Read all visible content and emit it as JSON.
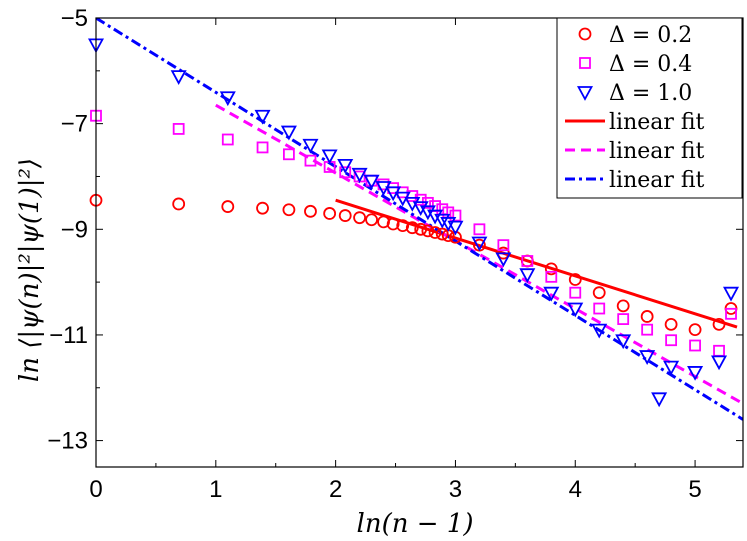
{
  "chart_data": {
    "type": "scatter",
    "xlabel": "ln(n − 1)",
    "ylabel": "ln ⟨|ψ(n)|²|ψ(1)|²⟩",
    "xlim": [
      0,
      5.4
    ],
    "ylim": [
      -13.5,
      -5
    ],
    "xticks": [
      0,
      1,
      2,
      3,
      4,
      5
    ],
    "yticks": [
      -5,
      -7,
      -9,
      -11,
      -13
    ],
    "grid": false,
    "legend_position": "top-right",
    "series": [
      {
        "name": "Δ = 0.2",
        "marker": "circle",
        "color": "#ff0000",
        "points": [
          [
            0,
            -8.45
          ],
          [
            0.69,
            -8.52
          ],
          [
            1.1,
            -8.57
          ],
          [
            1.39,
            -8.6
          ],
          [
            1.61,
            -8.63
          ],
          [
            1.79,
            -8.66
          ],
          [
            1.95,
            -8.7
          ],
          [
            2.08,
            -8.74
          ],
          [
            2.2,
            -8.78
          ],
          [
            2.3,
            -8.82
          ],
          [
            2.4,
            -8.86
          ],
          [
            2.48,
            -8.9
          ],
          [
            2.56,
            -8.93
          ],
          [
            2.64,
            -8.97
          ],
          [
            2.71,
            -9.0
          ],
          [
            2.77,
            -9.03
          ],
          [
            2.83,
            -9.06
          ],
          [
            2.89,
            -9.09
          ],
          [
            2.94,
            -9.12
          ],
          [
            3.0,
            -9.15
          ],
          [
            3.2,
            -9.3
          ],
          [
            3.4,
            -9.45
          ],
          [
            3.6,
            -9.6
          ],
          [
            3.8,
            -9.75
          ],
          [
            4.0,
            -9.95
          ],
          [
            4.2,
            -10.2
          ],
          [
            4.4,
            -10.45
          ],
          [
            4.6,
            -10.65
          ],
          [
            4.8,
            -10.8
          ],
          [
            5.0,
            -10.9
          ],
          [
            5.2,
            -10.8
          ],
          [
            5.3,
            -10.5
          ]
        ]
      },
      {
        "name": "Δ = 0.4",
        "marker": "square",
        "color": "#ff00ff",
        "points": [
          [
            0,
            -6.85
          ],
          [
            0.69,
            -7.1
          ],
          [
            1.1,
            -7.3
          ],
          [
            1.39,
            -7.45
          ],
          [
            1.61,
            -7.58
          ],
          [
            1.79,
            -7.7
          ],
          [
            1.95,
            -7.82
          ],
          [
            2.08,
            -7.92
          ],
          [
            2.2,
            -8.0
          ],
          [
            2.3,
            -8.08
          ],
          [
            2.4,
            -8.15
          ],
          [
            2.48,
            -8.22
          ],
          [
            2.56,
            -8.3
          ],
          [
            2.64,
            -8.37
          ],
          [
            2.71,
            -8.44
          ],
          [
            2.77,
            -8.5
          ],
          [
            2.83,
            -8.56
          ],
          [
            2.89,
            -8.62
          ],
          [
            2.94,
            -8.68
          ],
          [
            3.0,
            -8.74
          ],
          [
            3.2,
            -9.0
          ],
          [
            3.4,
            -9.3
          ],
          [
            3.6,
            -9.6
          ],
          [
            3.8,
            -9.9
          ],
          [
            4.0,
            -10.2
          ],
          [
            4.2,
            -10.5
          ],
          [
            4.4,
            -10.7
          ],
          [
            4.6,
            -10.9
          ],
          [
            4.8,
            -11.1
          ],
          [
            5.0,
            -11.2
          ],
          [
            5.2,
            -11.3
          ],
          [
            5.3,
            -10.6
          ]
        ]
      },
      {
        "name": "Δ = 1.0",
        "marker": "triangle-down",
        "color": "#0000ff",
        "points": [
          [
            0,
            -5.5
          ],
          [
            0.69,
            -6.1
          ],
          [
            1.1,
            -6.5
          ],
          [
            1.39,
            -6.85
          ],
          [
            1.61,
            -7.15
          ],
          [
            1.79,
            -7.4
          ],
          [
            1.95,
            -7.6
          ],
          [
            2.08,
            -7.78
          ],
          [
            2.2,
            -7.95
          ],
          [
            2.3,
            -8.08
          ],
          [
            2.4,
            -8.2
          ],
          [
            2.48,
            -8.3
          ],
          [
            2.56,
            -8.4
          ],
          [
            2.64,
            -8.5
          ],
          [
            2.71,
            -8.58
          ],
          [
            2.77,
            -8.66
          ],
          [
            2.83,
            -8.74
          ],
          [
            2.89,
            -8.82
          ],
          [
            2.94,
            -8.88
          ],
          [
            3.0,
            -8.95
          ],
          [
            3.2,
            -9.25
          ],
          [
            3.4,
            -9.55
          ],
          [
            3.6,
            -9.85
          ],
          [
            3.8,
            -10.2
          ],
          [
            4.0,
            -10.5
          ],
          [
            4.2,
            -10.9
          ],
          [
            4.4,
            -11.1
          ],
          [
            4.6,
            -11.4
          ],
          [
            4.7,
            -12.2
          ],
          [
            4.8,
            -11.6
          ],
          [
            5.0,
            -11.7
          ],
          [
            5.2,
            -11.5
          ],
          [
            5.3,
            -10.2
          ]
        ]
      }
    ],
    "fits": [
      {
        "name": "linear fit",
        "color": "#ff0000",
        "dash": "solid",
        "x": [
          2.0,
          5.35
        ],
        "y": [
          -8.45,
          -10.85
        ]
      },
      {
        "name": "linear fit",
        "color": "#ff00ff",
        "dash": "dashed",
        "x": [
          1.0,
          5.4
        ],
        "y": [
          -6.65,
          -12.3
        ]
      },
      {
        "name": "linear fit",
        "color": "#0000ff",
        "dash": "dashdot",
        "x": [
          0,
          5.4
        ],
        "y": [
          -5.0,
          -12.6
        ]
      }
    ]
  }
}
